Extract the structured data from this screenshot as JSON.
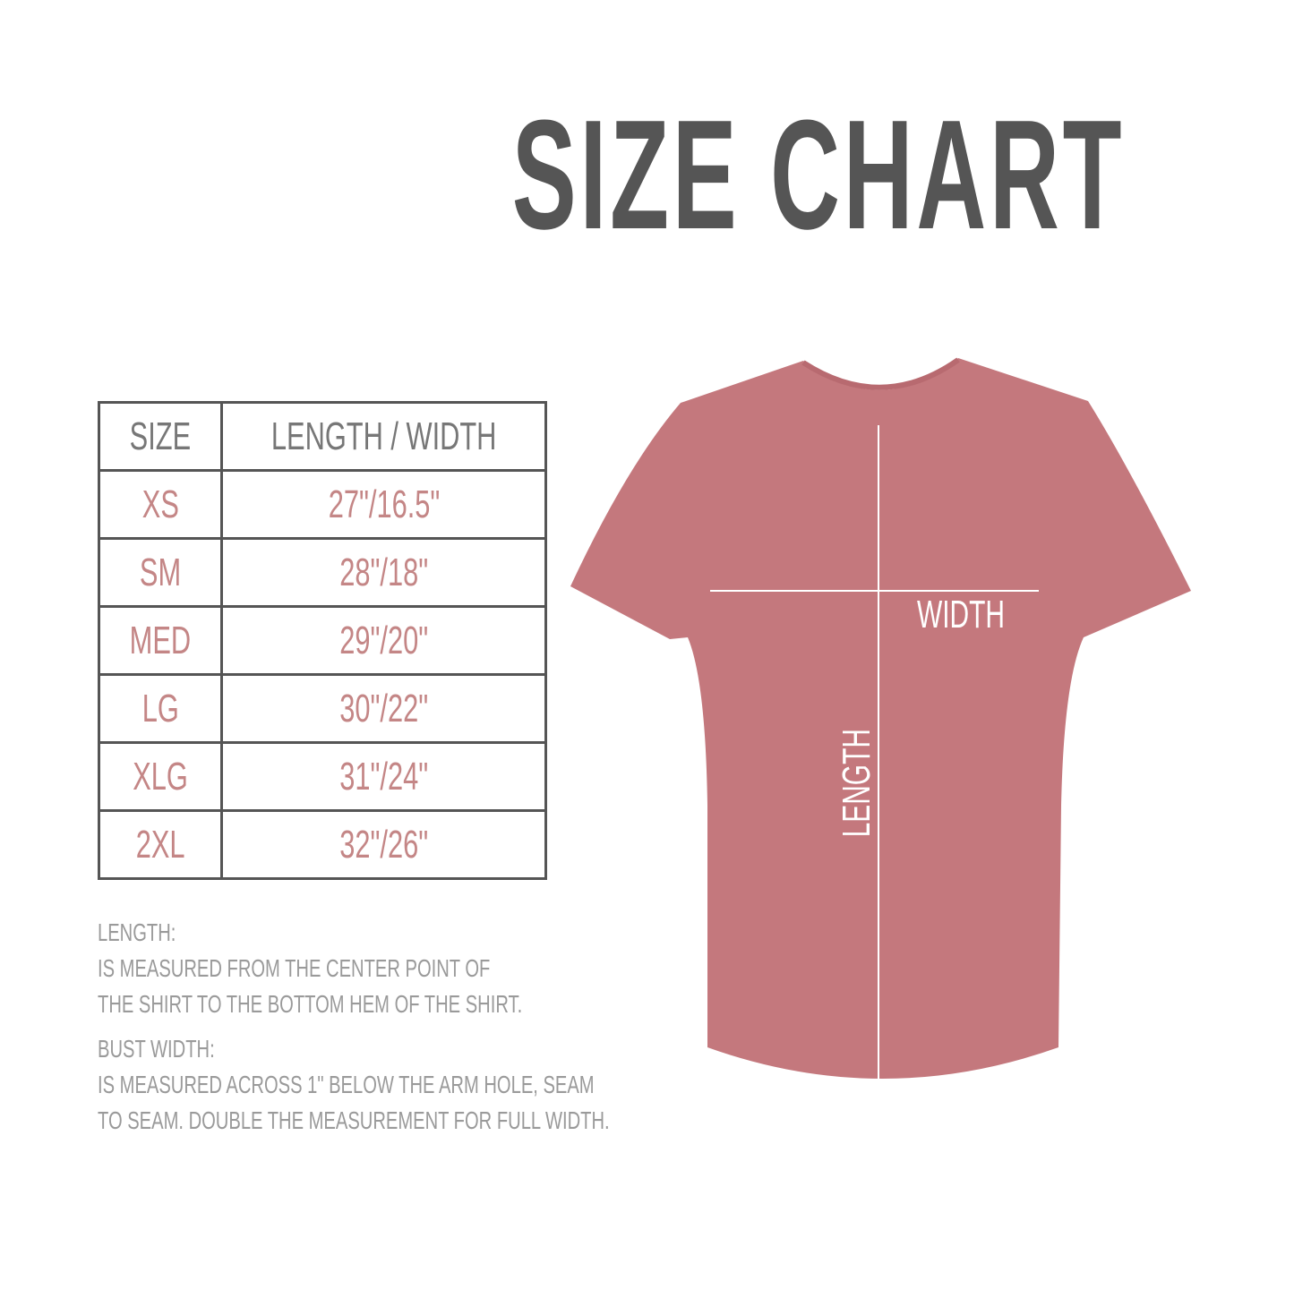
{
  "title": "SIZE CHART",
  "table": {
    "headers": [
      "SIZE",
      "LENGTH / WIDTH"
    ],
    "rows": [
      {
        "size": "XS",
        "measure": "27\"/16.5\""
      },
      {
        "size": "SM",
        "measure": "28\"/18\""
      },
      {
        "size": "MED",
        "measure": "29\"/20\""
      },
      {
        "size": "LG",
        "measure": "30\"/22\""
      },
      {
        "size": "XLG",
        "measure": "31\"/24\""
      },
      {
        "size": "2XL",
        "measure": "32\"/26\""
      }
    ]
  },
  "notes": {
    "length_heading": "LENGTH:",
    "length_line1": "IS MEASURED FROM THE CENTER POINT OF",
    "length_line2": "THE SHIRT TO THE BOTTOM HEM OF THE SHIRT.",
    "width_heading": "BUST WIDTH:",
    "width_line1": "IS MEASURED ACROSS  1\" BELOW THE ARM HOLE, SEAM",
    "width_line2": "TO SEAM. DOUBLE THE MEASUREMENT FOR FULL WIDTH."
  },
  "diagram": {
    "width_label": "WIDTH",
    "length_label": "LENGTH",
    "shirt_color": "#c4787d"
  },
  "colors": {
    "title": "#555555",
    "size_values": "#c48686",
    "notes": "#9a9a9a"
  }
}
